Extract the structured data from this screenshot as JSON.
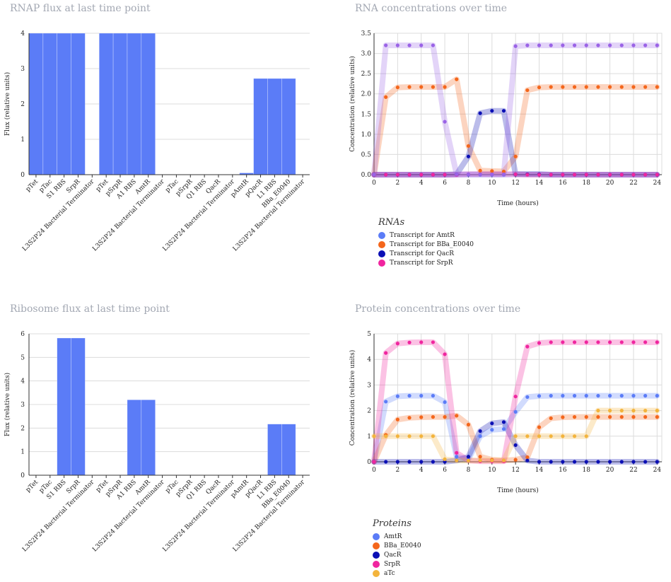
{
  "titles": {
    "rnap": "RNAP flux at last time point",
    "rna": "RNA concentrations over time",
    "ribo": "Ribosome flux at last time point",
    "prot": "Protein concentrations over time"
  },
  "colors": {
    "bar": "#5b7cf7",
    "AmtR": "#5b7cf7",
    "BBa_E0040": "#f4661b",
    "QacR": "#0b0fb5",
    "SrpR": "#f0259f",
    "aTc": "#f3b43c"
  },
  "legends": {
    "rna": {
      "title": "RNAs",
      "items": [
        {
          "label": "Transcript for AmtR",
          "color": "#5b7cf7"
        },
        {
          "label": "Transcript for BBa_E0040",
          "color": "#f4661b"
        },
        {
          "label": "Transcript for QacR",
          "color": "#0b0fb5"
        },
        {
          "label": "Transcript for SrpR",
          "color": "#f0259f"
        }
      ]
    },
    "prot": {
      "title": "Proteins",
      "items": [
        {
          "label": "AmtR",
          "color": "#5b7cf7"
        },
        {
          "label": "BBa_E0040",
          "color": "#f4661b"
        },
        {
          "label": "QacR",
          "color": "#0b0fb5"
        },
        {
          "label": "SrpR",
          "color": "#f0259f"
        },
        {
          "label": "aTc",
          "color": "#f3b43c"
        }
      ]
    }
  },
  "chart_data": [
    {
      "id": "rnap",
      "type": "bar",
      "title": "RNAP flux at last time point",
      "ylabel": "Flux (relative units)",
      "ylim": [
        0,
        4
      ],
      "yticks": [
        0,
        1,
        2,
        3,
        4
      ],
      "categories": [
        "pTet",
        "pTac",
        "S1 RBS",
        "SrpR",
        "L3S2P24 Bacterial Terminator",
        "pTet",
        "pSrpR",
        "A1 RBS",
        "AmtR",
        "L3S2P24 Bacterial Terminator",
        "pTac",
        "pSrpR",
        "Q1 RBS",
        "QacR",
        "L3S2P24 Bacterial Terminator",
        "pAmtR",
        "pQacR",
        "L1 RBS",
        "BBa_E0040",
        "L3S2P24 Bacterial Terminator"
      ],
      "values": [
        4,
        4,
        4,
        4,
        0,
        4,
        4,
        4,
        4,
        0,
        0,
        0,
        0,
        0,
        0,
        0.05,
        2.72,
        2.72,
        2.72,
        0
      ]
    },
    {
      "id": "ribo",
      "type": "bar",
      "title": "Ribosome flux at last time point",
      "ylabel": "Flux (relative units)",
      "ylim": [
        0,
        6
      ],
      "yticks": [
        0,
        1,
        2,
        3,
        4,
        5,
        6
      ],
      "categories": [
        "pTet",
        "pTac",
        "S1 RBS",
        "SrpR",
        "L3S2P24 Bacterial Terminator",
        "pTet",
        "pSrpR",
        "A1 RBS",
        "AmtR",
        "L3S2P24 Bacterial Terminator",
        "pTac",
        "pSrpR",
        "Q1 RBS",
        "QacR",
        "L3S2P24 Bacterial Terminator",
        "pAmtR",
        "pQacR",
        "L1 RBS",
        "BBa_E0040",
        "L3S2P24 Bacterial Terminator"
      ],
      "values": [
        0,
        0,
        5.82,
        5.82,
        0,
        0,
        0,
        3.2,
        3.2,
        0,
        0,
        0,
        0,
        0,
        0,
        0,
        0,
        2.17,
        2.17,
        0
      ]
    },
    {
      "id": "rna",
      "type": "line",
      "title": "RNA concentrations over time",
      "xlabel": "Time (hours)",
      "ylabel": "Concentration (relative units)",
      "xlim": [
        0,
        24.4
      ],
      "ylim": [
        0,
        3.5
      ],
      "xticks": [
        0,
        2,
        4,
        6,
        8,
        10,
        12,
        14,
        16,
        18,
        20,
        22,
        24
      ],
      "yticks": [
        "0.0",
        "0.5",
        "1.0",
        "1.5",
        "2.0",
        "2.5",
        "3.0",
        "3.5"
      ],
      "x": [
        0,
        1.0,
        2.0,
        3.0,
        4.0,
        5.0,
        6.0,
        7.0,
        8.0,
        9.0,
        10.0,
        11.0,
        12.0,
        13.0,
        14.0,
        15.0,
        16.0,
        17.0,
        18.0,
        19.0,
        20.0,
        21.0,
        22.0,
        23.0,
        24.0
      ],
      "series": [
        {
          "name": "Transcript for AmtR",
          "color": "#5b7cf7",
          "values": [
            0,
            0,
            0,
            0,
            0,
            0,
            0,
            0,
            0,
            0,
            0,
            0,
            0.01,
            0.01,
            0.01,
            0,
            0,
            0,
            0,
            0,
            0,
            0,
            0,
            0,
            0
          ]
        },
        {
          "name": "Transcript for BBa_E0040",
          "color": "#f4661b",
          "values": [
            0,
            1.92,
            2.16,
            2.17,
            2.17,
            2.17,
            2.17,
            2.36,
            0.71,
            0.1,
            0.09,
            0.08,
            0.45,
            2.09,
            2.16,
            2.17,
            2.17,
            2.17,
            2.17,
            2.17,
            2.17,
            2.17,
            2.17,
            2.17,
            2.17
          ]
        },
        {
          "name": "Transcript for QacR",
          "color": "#0b0fb5",
          "values": [
            0,
            0,
            0,
            0,
            0,
            0,
            0,
            0.01,
            0.45,
            1.52,
            1.58,
            1.58,
            0.01,
            0.01,
            0.01,
            0,
            0,
            0,
            0,
            0,
            0,
            0,
            0,
            0,
            0
          ]
        },
        {
          "name": "Transcript for SrpR",
          "color": "#f0259f",
          "values": [
            0,
            0,
            0,
            0,
            0,
            0,
            0,
            0,
            0.01,
            0.01,
            0.01,
            0.01,
            0.01,
            0,
            0,
            0,
            0,
            0,
            0,
            0,
            0,
            0,
            0,
            0,
            0
          ]
        },
        {
          "name": "",
          "color": "#9a63e6",
          "values": [
            0,
            3.2,
            3.2,
            3.2,
            3.2,
            3.2,
            1.31,
            0.01,
            0.01,
            0.01,
            0.01,
            0.01,
            3.18,
            3.2,
            3.2,
            3.2,
            3.2,
            3.2,
            3.2,
            3.2,
            3.2,
            3.2,
            3.2,
            3.2,
            3.2
          ]
        }
      ]
    },
    {
      "id": "prot",
      "type": "line",
      "title": "Protein concentrations over time",
      "xlabel": "Time (hours)",
      "ylabel": "Concentration (relative units)",
      "xlim": [
        0,
        24.4
      ],
      "ylim": [
        0,
        5
      ],
      "xticks": [
        0,
        2,
        4,
        6,
        8,
        10,
        12,
        14,
        16,
        18,
        20,
        22,
        24
      ],
      "yticks": [
        0,
        1,
        2,
        3,
        4,
        5
      ],
      "x": [
        0,
        1.0,
        2.0,
        3.0,
        4.0,
        5.0,
        6.0,
        7.0,
        8.0,
        9.0,
        10.0,
        11.0,
        12.0,
        13.0,
        14.0,
        15.0,
        16.0,
        17.0,
        18.0,
        19.0,
        20.0,
        21.0,
        22.0,
        23.0,
        24.0
      ],
      "series": [
        {
          "name": "AmtR",
          "color": "#5b7cf7",
          "values": [
            0,
            2.35,
            2.56,
            2.58,
            2.58,
            2.58,
            2.33,
            0.2,
            0.1,
            1.0,
            1.25,
            1.28,
            1.95,
            2.53,
            2.57,
            2.58,
            2.58,
            2.58,
            2.58,
            2.58,
            2.58,
            2.58,
            2.58,
            2.58,
            2.58
          ]
        },
        {
          "name": "BBa_E0040",
          "color": "#f4661b",
          "values": [
            0,
            1.05,
            1.65,
            1.72,
            1.74,
            1.75,
            1.75,
            1.8,
            1.45,
            0.2,
            0.08,
            0.05,
            0.08,
            0.18,
            1.35,
            1.7,
            1.74,
            1.75,
            1.75,
            1.75,
            1.75,
            1.75,
            1.75,
            1.75,
            1.75
          ]
        },
        {
          "name": "QacR",
          "color": "#0b0fb5",
          "values": [
            0,
            0,
            0,
            0,
            0,
            0,
            0,
            0.05,
            0.2,
            1.2,
            1.5,
            1.55,
            0.65,
            0.05,
            0,
            0,
            0,
            0,
            0,
            0,
            0,
            0,
            0,
            0,
            0
          ]
        },
        {
          "name": "SrpR",
          "color": "#f0259f",
          "values": [
            0,
            4.25,
            4.62,
            4.66,
            4.67,
            4.67,
            4.2,
            0.35,
            0.05,
            0.02,
            0.02,
            0.02,
            2.55,
            4.5,
            4.64,
            4.67,
            4.67,
            4.67,
            4.67,
            4.67,
            4.67,
            4.67,
            4.67,
            4.67,
            4.67
          ]
        },
        {
          "name": "aTc",
          "color": "#f3b43c",
          "values": [
            1,
            1,
            1,
            1,
            1,
            1,
            0.1,
            0.05,
            0.05,
            0.05,
            0.05,
            0.05,
            1,
            1,
            1,
            1,
            1,
            1,
            1,
            2,
            2,
            2,
            2,
            2,
            2
          ]
        }
      ]
    }
  ]
}
